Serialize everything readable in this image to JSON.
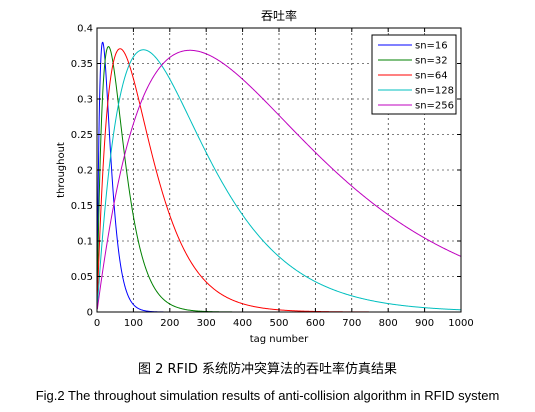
{
  "chart_data": {
    "type": "line",
    "title": "吞吐率",
    "xlabel": "tag number",
    "ylabel": "throughout",
    "xlim": [
      0,
      1000
    ],
    "ylim": [
      0,
      0.4
    ],
    "xticks": [
      "0",
      "100",
      "200",
      "300",
      "400",
      "500",
      "600",
      "700",
      "800",
      "900",
      "1000"
    ],
    "yticks": [
      "0",
      "0.05",
      "0.1",
      "0.15",
      "0.2",
      "0.25",
      "0.3",
      "0.35",
      "0.4"
    ],
    "xtick_values": [
      0,
      100,
      200,
      300,
      400,
      500,
      600,
      700,
      800,
      900,
      1000
    ],
    "ytick_values": [
      0,
      0.05,
      0.1,
      0.15,
      0.2,
      0.25,
      0.3,
      0.35,
      0.4
    ],
    "grid": true,
    "legend_position": "top-right",
    "series": [
      {
        "name": "sn=16",
        "color": "#0000ff",
        "frame_size": 16,
        "peak_x": 16,
        "peak_y": 0.379
      },
      {
        "name": "sn=32",
        "color": "#008000",
        "frame_size": 32,
        "peak_x": 32,
        "peak_y": 0.373
      },
      {
        "name": "sn=64",
        "color": "#ff0000",
        "frame_size": 64,
        "peak_x": 64,
        "peak_y": 0.371
      },
      {
        "name": "sn=128",
        "color": "#00bfbf",
        "frame_size": 128,
        "peak_x": 128,
        "peak_y": 0.369
      },
      {
        "name": "sn=256",
        "color": "#bf00bf",
        "frame_size": 256,
        "peak_x": 256,
        "peak_y": 0.368
      }
    ]
  },
  "captions": {
    "cn": "图 2   RFID 系统防冲突算法的吞吐率仿真结果",
    "en": "Fig.2 The throughout simulation results of anti-collision algorithm in RFID system"
  }
}
